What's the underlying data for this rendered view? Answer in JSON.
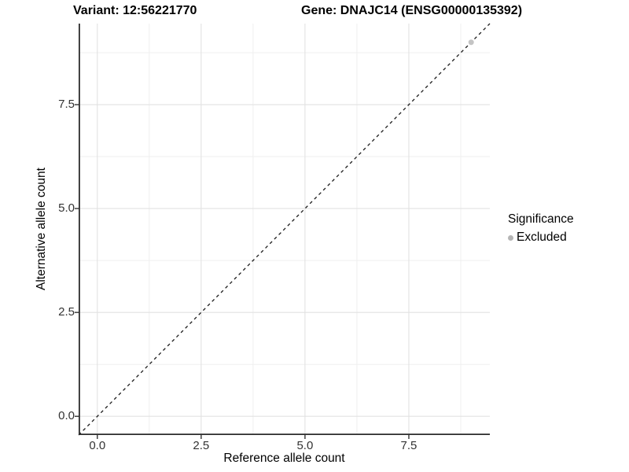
{
  "chart_data": {
    "type": "scatter",
    "title_variant": "Variant: 12:56221770",
    "title_gene": "Gene: DNAJC14 (ENSG00000135392)",
    "xlabel": "Reference allele count",
    "ylabel": "Alternative allele count",
    "xlim": [
      -0.45,
      9.45
    ],
    "ylim": [
      -0.45,
      9.45
    ],
    "x_ticks": {
      "values": [
        0,
        2.5,
        5,
        7.5
      ],
      "labels": [
        "0.0",
        "2.5",
        "5.0",
        "7.5"
      ]
    },
    "y_ticks": {
      "values": [
        0,
        2.5,
        5,
        7.5
      ],
      "labels": [
        "0.0",
        "2.5",
        "5.0",
        "7.5"
      ]
    },
    "minor_tick_values": [
      1.25,
      3.75,
      6.25,
      8.75
    ],
    "grid": {
      "major_color": "#e2e2e2",
      "minor_color": "#efefef",
      "background": "#ffffff"
    },
    "axis_line_color": "#2b2b2b",
    "tick_mark_color": "#333333",
    "reference_line": {
      "type": "identity",
      "from": [
        -0.45,
        -0.45
      ],
      "to": [
        9.45,
        9.45
      ],
      "style": "dashed",
      "color": "#1a1a1a"
    },
    "series": [
      {
        "name": "Excluded",
        "color": "#c4c4c4",
        "points": [
          [
            9.0,
            9.0
          ]
        ]
      }
    ],
    "legend": {
      "title": "Significance",
      "position": "right",
      "items": [
        {
          "label": "Excluded",
          "color": "#b5b5b5"
        }
      ]
    }
  }
}
